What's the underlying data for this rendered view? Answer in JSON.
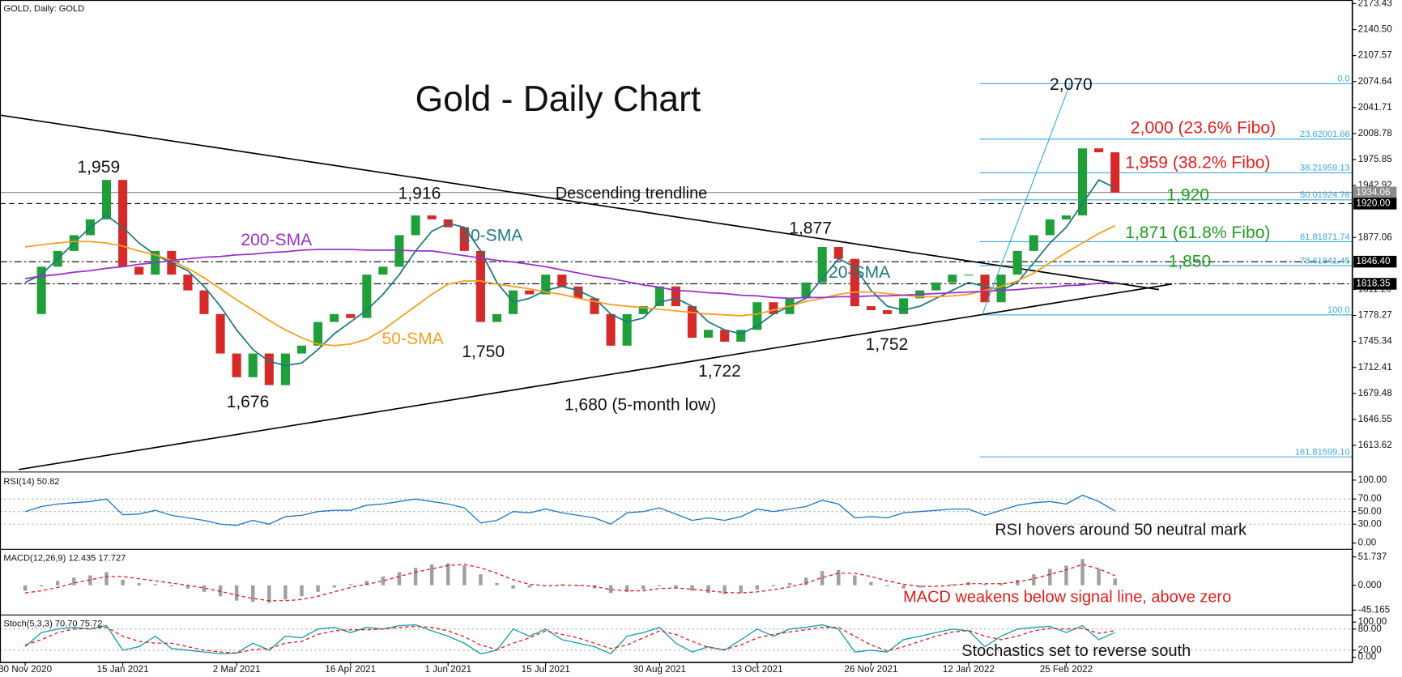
{
  "header": "GOLD, Daily:  GOLD",
  "chart_data": {
    "type": "candlestick",
    "title": "Gold - Daily Chart",
    "categories": [
      "30 Nov 2020",
      null,
      null,
      null,
      null,
      null,
      "15 Jan 2021",
      null,
      null,
      null,
      null,
      null,
      null,
      "2 Mar 2021",
      null,
      null,
      null,
      null,
      null,
      null,
      "16 Apr 2021",
      null,
      null,
      null,
      null,
      null,
      "1 Jun 2021",
      null,
      null,
      null,
      null,
      null,
      "15 Jul 2021",
      null,
      null,
      null,
      null,
      null,
      null,
      "30 Aug 2021",
      null,
      null,
      null,
      null,
      null,
      "13 Oct 2021",
      null,
      null,
      null,
      null,
      null,
      null,
      "26 Nov 2021",
      null,
      null,
      null,
      null,
      null,
      "12 Jan 2022",
      null,
      null,
      null,
      null,
      null,
      "25 Feb 2022",
      null,
      null,
      null
    ],
    "close": [
      1780,
      1840,
      1860,
      1880,
      1900,
      1950,
      1840,
      1830,
      1860,
      1830,
      1810,
      1780,
      1730,
      1700,
      1730,
      1690,
      1730,
      1740,
      1770,
      1780,
      1775,
      1830,
      1840,
      1880,
      1905,
      1900,
      1890,
      1860,
      1770,
      1780,
      1810,
      1805,
      1830,
      1815,
      1800,
      1780,
      1740,
      1780,
      1790,
      1815,
      1790,
      1750,
      1760,
      1745,
      1760,
      1795,
      1780,
      1800,
      1820,
      1865,
      1850,
      1790,
      1785,
      1780,
      1800,
      1810,
      1820,
      1830,
      1830,
      1795,
      1830,
      1860,
      1880,
      1900,
      1905,
      1990,
      1985,
      1934.06
    ],
    "up_color": "#1f9e3a",
    "down_color": "#d42a2a",
    "ylim": [
      1581,
      2178
    ],
    "yticks": [
      2173.43,
      {
        "value": 2140.5,
        "label": "2140.50"
      },
      2107.57,
      2074.64,
      2041.71,
      2008.78,
      1975.85,
      1942.92,
      1877.06,
      {
        "value": 1811.2,
        "label": "1811.20"
      },
      1778.27,
      1745.34,
      1712.41,
      1679.48,
      1646.55,
      1613.62
    ],
    "series": [
      {
        "name": "20-SMA",
        "color": "#1f7a80",
        "values": [
          1820,
          1830,
          1850,
          1870,
          1890,
          1905,
          1890,
          1870,
          1855,
          1845,
          1835,
          1815,
          1790,
          1760,
          1735,
          1720,
          1715,
          1718,
          1735,
          1755,
          1770,
          1785,
          1805,
          1830,
          1860,
          1885,
          1895,
          1890,
          1860,
          1820,
          1795,
          1800,
          1810,
          1815,
          1810,
          1800,
          1780,
          1770,
          1775,
          1795,
          1800,
          1790,
          1770,
          1760,
          1755,
          1765,
          1780,
          1790,
          1800,
          1825,
          1850,
          1840,
          1810,
          1790,
          1785,
          1790,
          1800,
          1810,
          1820,
          1815,
          1810,
          1820,
          1845,
          1870,
          1890,
          1920,
          1950,
          1940
        ]
      },
      {
        "name": "50-SMA",
        "color": "#f5a020",
        "values": [
          1865,
          1868,
          1870,
          1872,
          1872,
          1870,
          1866,
          1860,
          1855,
          1848,
          1838,
          1826,
          1812,
          1798,
          1785,
          1772,
          1760,
          1750,
          1742,
          1740,
          1742,
          1748,
          1760,
          1775,
          1790,
          1805,
          1818,
          1822,
          1822,
          1818,
          1815,
          1812,
          1808,
          1805,
          1800,
          1796,
          1792,
          1790,
          1788,
          1786,
          1784,
          1782,
          1780,
          1779,
          1778,
          1780,
          1785,
          1790,
          1796,
          1800,
          1805,
          1808,
          1808,
          1806,
          1804,
          1802,
          1802,
          1803,
          1805,
          1810,
          1815,
          1822,
          1832,
          1845,
          1858,
          1870,
          1882,
          1892
        ]
      },
      {
        "name": "200-SMA",
        "color": "#9b30d0",
        "values": [
          1825,
          1828,
          1830,
          1833,
          1835,
          1838,
          1840,
          1843,
          1845,
          1848,
          1850,
          1852,
          1853,
          1855,
          1856,
          1858,
          1859,
          1861,
          1862,
          1862,
          1862,
          1861,
          1861,
          1861,
          1860,
          1860,
          1857,
          1854,
          1851,
          1848,
          1846,
          1843,
          1840,
          1836,
          1832,
          1828,
          1825,
          1821,
          1817,
          1814,
          1810,
          1809,
          1807,
          1806,
          1804,
          1803,
          1801,
          1800,
          1801,
          1801,
          1802,
          1802,
          1803,
          1803,
          1804,
          1805,
          1806,
          1807,
          1808,
          1809,
          1810,
          1811,
          1813,
          1814,
          1816,
          1817,
          1819,
          1820
        ]
      }
    ],
    "fibonacci": [
      {
        "label": "0.0",
        "value": 2072
      },
      {
        "label": "23.62001.66",
        "value": 2001.66
      },
      {
        "label": "38.21959.13",
        "value": 1959.13
      },
      {
        "label": "50.01924.76",
        "value": 1924.76
      },
      {
        "label": "61.81871.74",
        "value": 1871.74
      },
      {
        "label": "78.61841.45",
        "value": 1841.45
      },
      {
        "label": "100.0",
        "value": 1779
      },
      {
        "label": "161.81599.10",
        "value": 1599.1
      }
    ],
    "fib_color": "#3aa7e0",
    "price_levels": [
      {
        "value": 1934.06,
        "label": "1934.06",
        "style": "solid",
        "color": "#8a8a8a"
      },
      {
        "value": 1920,
        "label": "1920.00",
        "style": "dashed",
        "color": "#000000"
      },
      {
        "value": 1846.4,
        "label": "1846.40",
        "style": "dashdot",
        "color": "#000000"
      },
      {
        "value": 1818.35,
        "label": "1818.35",
        "style": "dashdot",
        "color": "#000000"
      }
    ],
    "trendlines": [
      {
        "name": "Descending trendline",
        "from": [
          -1.5,
          2032
        ],
        "to": [
          69.7,
          1811
        ]
      },
      {
        "from": [
          -0.4,
          1583
        ],
        "to": [
          70.5,
          1818
        ]
      }
    ],
    "annotations": [
      "1,959",
      "1,916",
      "1,877",
      "2,070",
      "1,676",
      "1,750",
      "1,722",
      "1,680 (5-month low)",
      "1,752",
      "2,000 (23.6% Fibo)",
      "1,959 (38.2% Fibo)",
      "1,920",
      "1,871 (61.8% Fibo)",
      "1,850"
    ]
  },
  "rsi": {
    "label": "RSI(14) 50.82",
    "color": "#1e78c8",
    "values": [
      50,
      58,
      62,
      64,
      66,
      70,
      45,
      46,
      52,
      44,
      40,
      36,
      30,
      28,
      36,
      30,
      42,
      44,
      50,
      52,
      52,
      60,
      62,
      66,
      70,
      66,
      62,
      56,
      32,
      36,
      50,
      48,
      54,
      48,
      44,
      40,
      30,
      48,
      50,
      56,
      46,
      36,
      40,
      36,
      42,
      54,
      50,
      54,
      58,
      68,
      62,
      40,
      42,
      40,
      48,
      50,
      52,
      54,
      54,
      44,
      52,
      60,
      64,
      66,
      62,
      76,
      66,
      50.82
    ],
    "ylim": [
      -8.6,
      108.6
    ],
    "yticks": [
      {
        "value": 100,
        "label": "100.00"
      },
      {
        "value": 70,
        "label": "70.00"
      },
      {
        "value": 50,
        "label": "50.00"
      },
      {
        "value": 30,
        "label": "30.00"
      },
      {
        "value": 0,
        "label": "0.00"
      }
    ],
    "levels": [
      70,
      50,
      30
    ],
    "annotation": "RSI hovers around 50 neutral mark"
  },
  "macd": {
    "label": "MACD(12,26,9) 12.435 17.727",
    "hist_color": "#a0a0a0",
    "signal_color": "#e02020",
    "histogram": [
      -10,
      -2,
      8,
      14,
      18,
      24,
      10,
      4,
      2,
      -2,
      -6,
      -12,
      -20,
      -28,
      -30,
      -32,
      -26,
      -20,
      -12,
      -4,
      2,
      8,
      16,
      24,
      32,
      38,
      40,
      36,
      20,
      4,
      -6,
      -4,
      0,
      2,
      -2,
      -6,
      -14,
      -12,
      -8,
      -2,
      -4,
      -10,
      -14,
      -16,
      -14,
      -8,
      -2,
      4,
      14,
      26,
      28,
      18,
      6,
      -2,
      -6,
      -4,
      0,
      2,
      6,
      2,
      4,
      10,
      20,
      30,
      36,
      48,
      30,
      12.435
    ],
    "signal": [
      -14,
      -10,
      -4,
      4,
      10,
      16,
      16,
      12,
      8,
      4,
      0,
      -5,
      -11,
      -18,
      -24,
      -28,
      -28,
      -26,
      -20,
      -12,
      -4,
      2,
      8,
      16,
      24,
      30,
      36,
      38,
      32,
      22,
      10,
      2,
      -1,
      0,
      0,
      -2,
      -8,
      -10,
      -10,
      -6,
      -5,
      -7,
      -10,
      -13,
      -14,
      -12,
      -8,
      -3,
      4,
      14,
      22,
      22,
      16,
      8,
      2,
      -2,
      -2,
      0,
      3,
      3,
      3,
      6,
      12,
      20,
      28,
      38,
      30,
      17.727
    ],
    "ylim": [
      -52.5,
      62.3
    ],
    "yticks": [
      51.737,
      {
        "value": 0,
        "label": "0.000"
      },
      -45.165
    ],
    "annotation": "MACD weakens below signal line, above zero"
  },
  "stoch": {
    "label": "Stoch(5,3,3) 70.70 75.72",
    "k_color": "#17a0b0",
    "d_color": "#e02020",
    "k": [
      30,
      70,
      80,
      85,
      80,
      90,
      20,
      30,
      60,
      25,
      20,
      15,
      10,
      12,
      40,
      20,
      60,
      55,
      80,
      85,
      70,
      85,
      80,
      90,
      92,
      75,
      60,
      40,
      10,
      20,
      80,
      60,
      80,
      50,
      40,
      30,
      10,
      60,
      70,
      85,
      40,
      15,
      30,
      20,
      50,
      80,
      60,
      80,
      85,
      92,
      80,
      15,
      20,
      15,
      50,
      60,
      70,
      80,
      75,
      30,
      60,
      80,
      85,
      88,
      70,
      90,
      50,
      70.7
    ],
    "d": [
      35,
      50,
      70,
      80,
      82,
      85,
      60,
      45,
      40,
      40,
      30,
      20,
      15,
      12,
      22,
      25,
      40,
      45,
      65,
      75,
      78,
      78,
      80,
      85,
      88,
      85,
      75,
      58,
      35,
      22,
      40,
      55,
      75,
      65,
      55,
      40,
      25,
      35,
      55,
      75,
      65,
      45,
      28,
      22,
      35,
      55,
      65,
      72,
      78,
      85,
      85,
      60,
      35,
      18,
      30,
      45,
      60,
      72,
      76,
      60,
      50,
      60,
      75,
      82,
      80,
      82,
      68,
      75.72
    ],
    "ylim": [
      -10,
      115
    ],
    "yticks": [
      {
        "value": 100,
        "label": "100.00"
      },
      {
        "value": 80,
        "label": "80.00"
      },
      {
        "value": 20,
        "label": "20.00"
      },
      {
        "value": 0,
        "label": "0.00"
      }
    ],
    "levels": [
      80,
      20
    ],
    "annotation": "Stochastics set to reverse south"
  }
}
